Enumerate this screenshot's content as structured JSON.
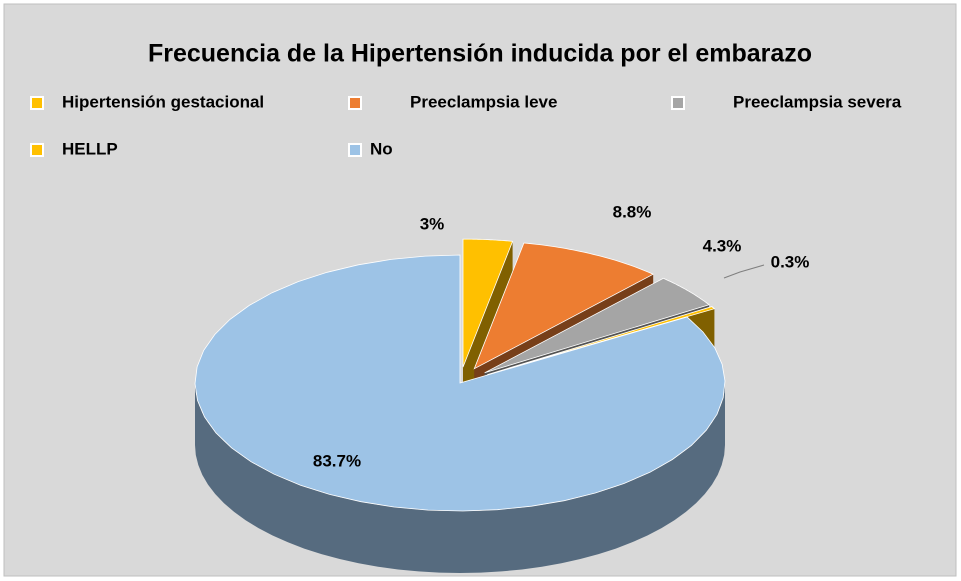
{
  "chart_data": {
    "type": "pie",
    "title": "Frecuencia de la Hipertensión inducida por el embarazo",
    "categories": [
      "Hipertensión gestacional",
      "Preeclampsia leve",
      "Preeclampsia severa",
      "HELLP",
      "No"
    ],
    "values": [
      3,
      8.8,
      4.3,
      0.3,
      83.7
    ],
    "value_labels": [
      "3%",
      "8.8%",
      "4.3%",
      "0.3%",
      "83.7%"
    ],
    "colors": [
      "#ffc000",
      "#ed7d31",
      "#a5a5a5",
      "#ffc000",
      "#9dc3e6"
    ],
    "legend": "top"
  }
}
